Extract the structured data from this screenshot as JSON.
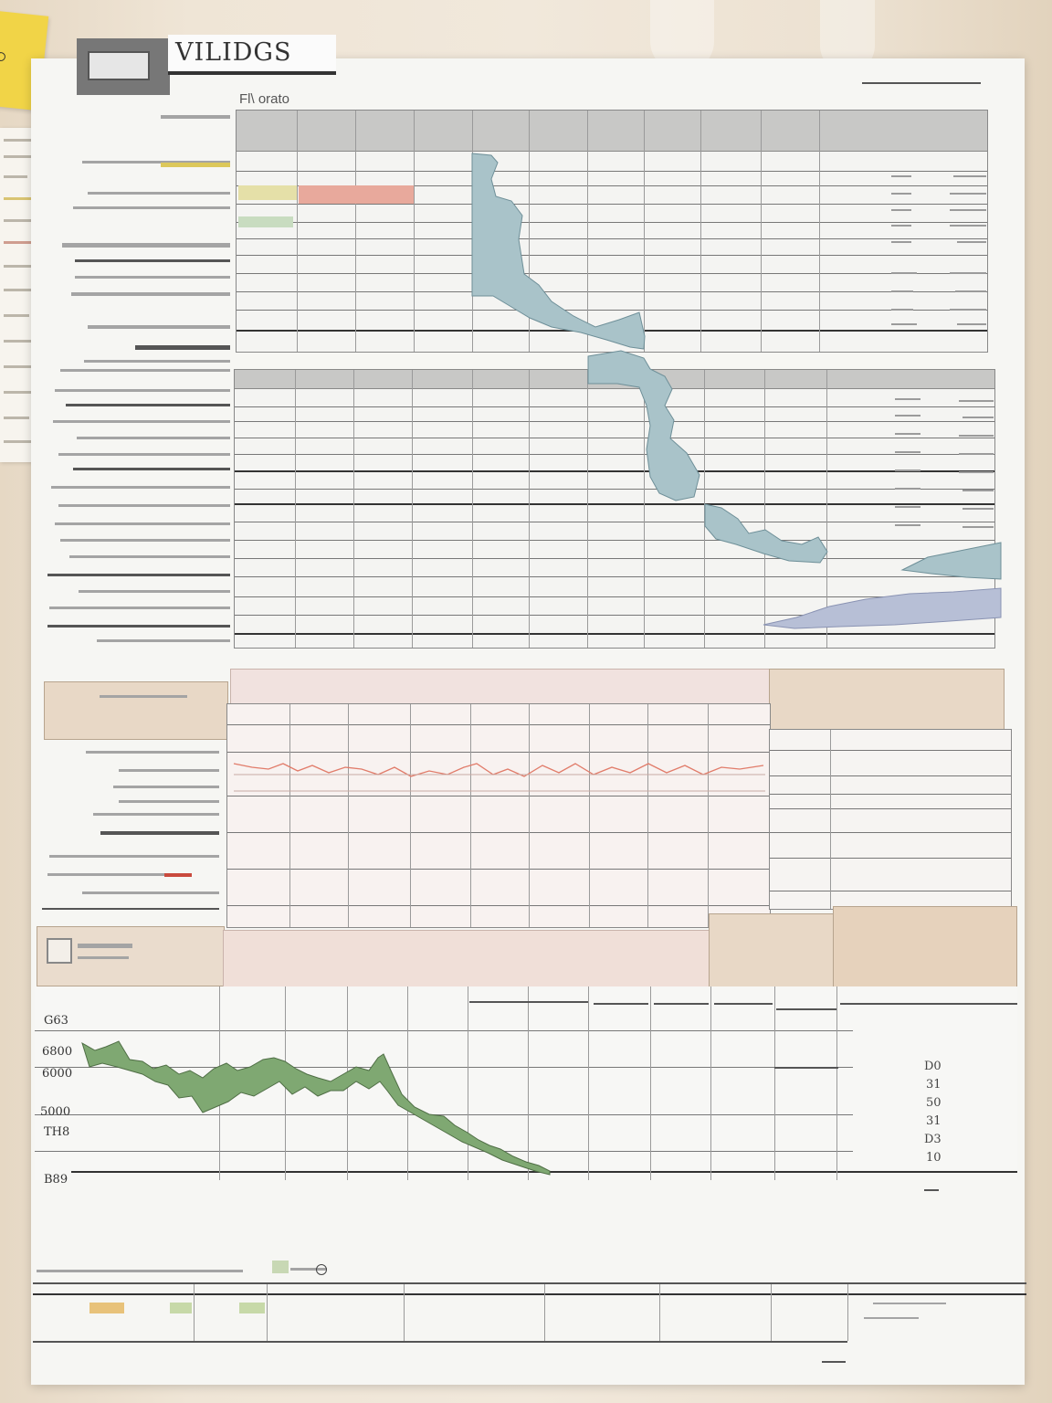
{
  "poster": {
    "title": "VILIDGS",
    "subheading": "Fl\\ orato"
  },
  "bottom_chart": {
    "axis_labels": [
      "G63",
      "6800",
      "6000",
      "5000",
      "TH8",
      "B89"
    ],
    "right_labels": [
      "D0",
      "31",
      "50",
      "31",
      "D3",
      "10"
    ]
  },
  "colors": {
    "map_fill": "#a9c3c9",
    "area_fill": "#7fa872",
    "trend_line": "#e17c6a",
    "header_gray": "#c8c8c6",
    "tan_panel": "#e8d8c6"
  }
}
